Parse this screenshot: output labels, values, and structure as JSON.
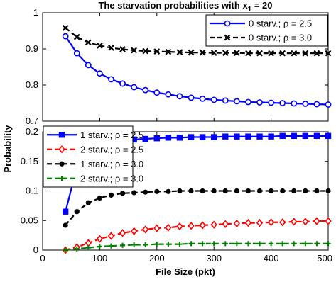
{
  "chart_data": {
    "type": "line",
    "title": "The starvation probabilities with x",
    "title_subscript": "1",
    "title_suffix": " = 20",
    "xlabel": "File Size (pkt)",
    "ylabel": "Probability",
    "x": [
      40,
      60,
      80,
      100,
      120,
      140,
      160,
      180,
      200,
      220,
      240,
      260,
      280,
      300,
      320,
      340,
      360,
      380,
      400,
      420,
      440,
      460,
      480,
      500
    ],
    "xlim": [
      0,
      500
    ],
    "xticks": [
      "0",
      "100",
      "200",
      "300",
      "400",
      "500"
    ],
    "panels": [
      {
        "name": "top",
        "ylim": [
          0.7,
          1.0
        ],
        "yticks": [
          "0.7",
          "0.8",
          "0.9",
          "1"
        ],
        "legend_position": "top-right",
        "series": [
          {
            "name": "0 starv.; ρ = 2.5",
            "color": "#0000ff",
            "line_style": "solid",
            "marker": "circle",
            "values": [
              0.935,
              0.888,
              0.855,
              0.832,
              0.816,
              0.804,
              0.794,
              0.786,
              0.779,
              0.774,
              0.769,
              0.765,
              0.762,
              0.759,
              0.757,
              0.755,
              0.753,
              0.752,
              0.751,
              0.75,
              0.749,
              0.748,
              0.747,
              0.746
            ]
          },
          {
            "name": "0 starv.; ρ = 3.0",
            "color": "#000000",
            "line_style": "dashed",
            "marker": "x",
            "values": [
              0.958,
              0.933,
              0.918,
              0.909,
              0.903,
              0.899,
              0.896,
              0.894,
              0.893,
              0.892,
              0.891,
              0.89,
              0.89,
              0.889,
              0.889,
              0.889,
              0.888,
              0.888,
              0.888,
              0.888,
              0.888,
              0.888,
              0.888,
              0.888
            ]
          }
        ]
      },
      {
        "name": "bottom",
        "ylim": [
          0,
          0.2
        ],
        "yticks": [
          "0",
          "0.05",
          "0.1",
          "0.15",
          "0.2"
        ],
        "legend_position": "top-left",
        "series": [
          {
            "name": "1 starv.; ρ = 2.5",
            "color": "#0000ff",
            "line_style": "solid",
            "marker": "square",
            "values": [
              0.065,
              0.14,
              0.168,
              0.178,
              0.183,
              0.186,
              0.187,
              0.188,
              0.189,
              0.19,
              0.19,
              0.191,
              0.191,
              0.191,
              0.192,
              0.192,
              0.192,
              0.192,
              0.192,
              0.193,
              0.193,
              0.193,
              0.193,
              0.193
            ]
          },
          {
            "name": "2 starv.; ρ = 2.5",
            "color": "#ff0000",
            "line_style": "dashed",
            "marker": "diamond",
            "values": [
              0.0,
              0.005,
              0.012,
              0.019,
              0.024,
              0.029,
              0.032,
              0.035,
              0.037,
              0.038,
              0.04,
              0.041,
              0.042,
              0.043,
              0.044,
              0.045,
              0.046,
              0.046,
              0.047,
              0.047,
              0.048,
              0.048,
              0.049,
              0.049
            ]
          },
          {
            "name": "1 starv.; ρ = 3.0",
            "color": "#000000",
            "line_style": "dashed",
            "marker": "dot",
            "values": [
              0.042,
              0.065,
              0.08,
              0.088,
              0.093,
              0.096,
              0.097,
              0.098,
              0.099,
              0.099,
              0.1,
              0.1,
              0.1,
              0.1,
              0.1,
              0.1,
              0.1,
              0.1,
              0.1,
              0.1,
              0.1,
              0.1,
              0.1,
              0.1
            ]
          },
          {
            "name": "2 starv.; ρ = 3.0",
            "color": "#008000",
            "line_style": "dashed",
            "marker": "plus",
            "values": [
              0.0,
              0.002,
              0.004,
              0.006,
              0.007,
              0.008,
              0.009,
              0.009,
              0.01,
              0.01,
              0.01,
              0.011,
              0.011,
              0.011,
              0.011,
              0.011,
              0.011,
              0.011,
              0.011,
              0.011,
              0.011,
              0.011,
              0.011,
              0.011
            ]
          }
        ]
      }
    ]
  }
}
